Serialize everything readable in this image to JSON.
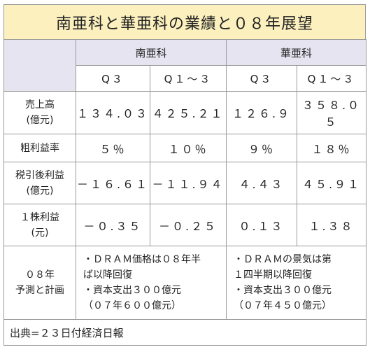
{
  "title": "南亜科と華亜科の業績と０８年展望",
  "companies": [
    "南亜科",
    "華亜科"
  ],
  "periods": [
    "Q３",
    "Q１～３",
    "Q３",
    "Q１～３"
  ],
  "rows": [
    {
      "label1": "売上高",
      "label2": "(億元)",
      "values": [
        "１３４.０３",
        "４２５.２１",
        "１２６.９",
        "３５８.０５"
      ]
    },
    {
      "label1": "粗利益率",
      "label2": "",
      "values": [
        "５％",
        "１０％",
        "９％",
        "１８％"
      ]
    },
    {
      "label1": "税引後利益",
      "label2": "(億元)",
      "values": [
        "－１６.６１",
        "－１１.９４",
        "４.４３",
        "４５.９１"
      ]
    },
    {
      "label1": "１株利益",
      "label2": "(元)",
      "values": [
        "－０.３５",
        "－０.２５",
        "０.１３",
        "１.３８"
      ]
    }
  ],
  "plan": {
    "label1": "０８年",
    "label2": "予測と計画",
    "nanya": [
      "・ＤＲＡＭ価格は０８年半",
      "ば以降回復",
      "・資本支出３００億元",
      "（０７年６００億元）"
    ],
    "inotera": [
      "・ＤＲＡＭの景気は第",
      "１四半期以降回復",
      "・資本支出３００億元",
      "（０７年４５０億元）"
    ]
  },
  "source": "出典=２３日付経済日報"
}
